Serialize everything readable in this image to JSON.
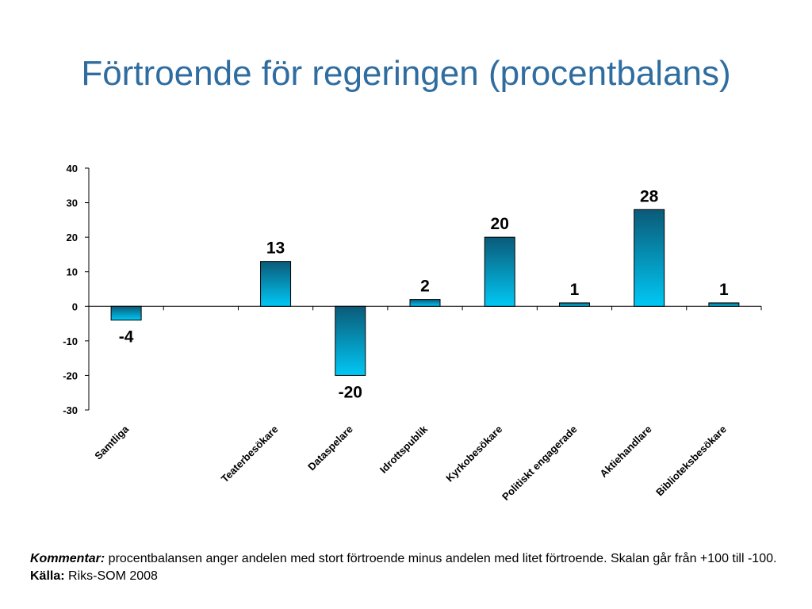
{
  "slide": {
    "title": "Förtroende för regeringen (procentbalans)"
  },
  "chart_data": {
    "type": "bar",
    "title": "",
    "xlabel": "",
    "ylabel": "",
    "ylim": [
      -30,
      40
    ],
    "yticks": [
      40,
      30,
      20,
      10,
      0,
      -10,
      -20,
      -30
    ],
    "ytick_labels": [
      "40",
      "30",
      "20",
      "10",
      "0",
      "-10",
      "-20",
      "-30"
    ],
    "grid": false,
    "bar_gradient": {
      "top": "#0b5a78",
      "bottom": "#00c8f5"
    },
    "categories": [
      {
        "label": "Samtliga",
        "value": -4,
        "value_label": "-4"
      },
      {
        "label": "",
        "value": null,
        "value_label": ""
      },
      {
        "label": "Teaterbesökare",
        "value": 13,
        "value_label": "13"
      },
      {
        "label": "Dataspelare",
        "value": -20,
        "value_label": "-20"
      },
      {
        "label": "Idrottspublik",
        "value": 2,
        "value_label": "2"
      },
      {
        "label": "Kyrkobesökare",
        "value": 20,
        "value_label": "20"
      },
      {
        "label": "Politiskt engagerade",
        "value": 1,
        "value_label": "1"
      },
      {
        "label": "Aktiehandlare",
        "value": 28,
        "value_label": "28"
      },
      {
        "label": "Biblioteksbesökare",
        "value": 1,
        "value_label": "1"
      }
    ]
  },
  "footer": {
    "comment_label": "Kommentar:",
    "comment_text": " procentbalansen anger andelen med stort förtroende minus andelen med litet förtroende. Skalan går från +100 till -100. ",
    "source_label": "Källa:",
    "source_text": " Riks-SOM 2008"
  }
}
